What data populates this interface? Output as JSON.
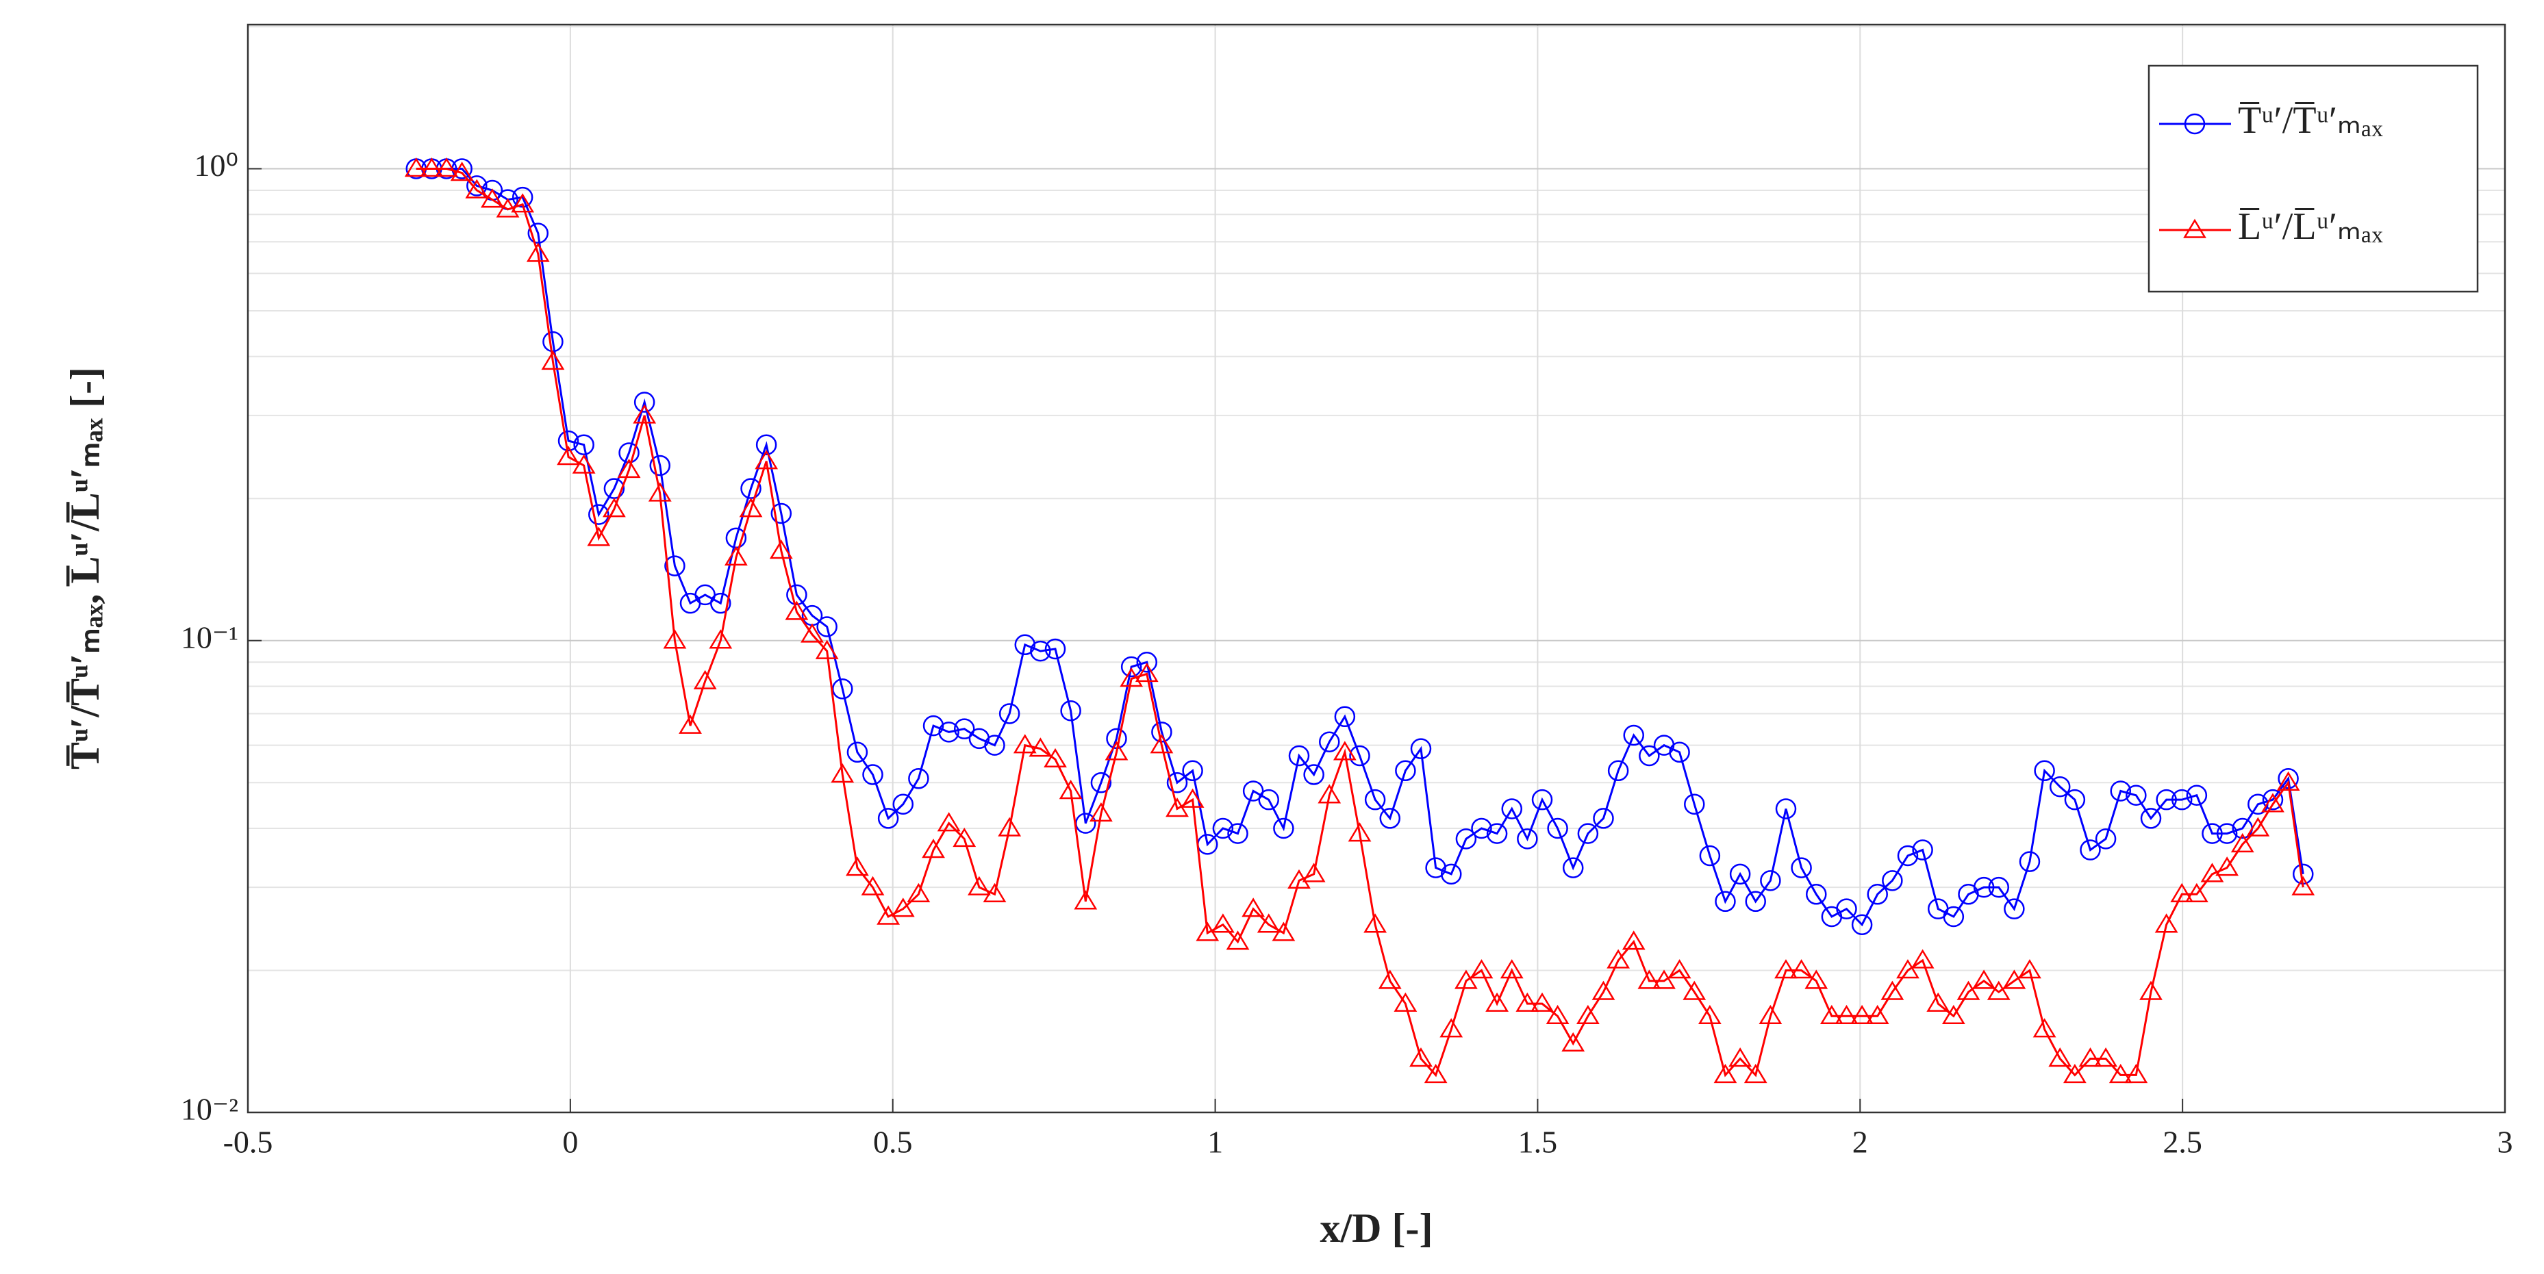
{
  "chart_data": {
    "type": "line",
    "xlabel": "x/D [-]",
    "ylabel": "T̅ᵘ′/T̅ᵘ′ₘₐₓ, L̅ᵘ′/L̅ᵘ′ₘₐₓ [-]",
    "x": [
      -0.239,
      -0.215,
      -0.192,
      -0.168,
      -0.145,
      -0.121,
      -0.097,
      -0.074,
      -0.05,
      -0.027,
      -0.003,
      0.021,
      0.044,
      0.068,
      0.091,
      0.115,
      0.139,
      0.162,
      0.186,
      0.209,
      0.233,
      0.257,
      0.28,
      0.304,
      0.327,
      0.351,
      0.375,
      0.398,
      0.422,
      0.445,
      0.469,
      0.493,
      0.516,
      0.54,
      0.563,
      0.587,
      0.611,
      0.634,
      0.658,
      0.681,
      0.705,
      0.729,
      0.752,
      0.776,
      0.799,
      0.823,
      0.847,
      0.87,
      0.894,
      0.917,
      0.941,
      0.965,
      0.988,
      1.012,
      1.035,
      1.059,
      1.083,
      1.106,
      1.13,
      1.153,
      1.177,
      1.201,
      1.224,
      1.248,
      1.271,
      1.295,
      1.319,
      1.342,
      1.366,
      1.389,
      1.413,
      1.437,
      1.46,
      1.484,
      1.507,
      1.531,
      1.555,
      1.578,
      1.602,
      1.625,
      1.649,
      1.673,
      1.696,
      1.72,
      1.743,
      1.767,
      1.791,
      1.814,
      1.838,
      1.861,
      1.885,
      1.909,
      1.932,
      1.956,
      1.979,
      2.003,
      2.027,
      2.05,
      2.074,
      2.097,
      2.121,
      2.145,
      2.168,
      2.192,
      2.215,
      2.239,
      2.263,
      2.286,
      2.31,
      2.333,
      2.357,
      2.381,
      2.404,
      2.428,
      2.451,
      2.475,
      2.499,
      2.522,
      2.546,
      2.569,
      2.593,
      2.617,
      2.64,
      2.664,
      2.687
    ],
    "series": [
      {
        "name": "T̅ᵘ′/T̅ᵘ′ₘₐₓ",
        "color": "#0000ff",
        "marker": "circle",
        "values": [
          1.0,
          1.0,
          1.0,
          1.0,
          0.92,
          0.9,
          0.86,
          0.87,
          0.73,
          0.43,
          0.265,
          0.26,
          0.185,
          0.21,
          0.25,
          0.32,
          0.235,
          0.144,
          0.12,
          0.125,
          0.12,
          0.165,
          0.21,
          0.26,
          0.186,
          0.125,
          0.113,
          0.107,
          0.079,
          0.058,
          0.052,
          0.042,
          0.045,
          0.051,
          0.066,
          0.064,
          0.065,
          0.062,
          0.06,
          0.07,
          0.098,
          0.095,
          0.096,
          0.071,
          0.041,
          0.05,
          0.062,
          0.088,
          0.09,
          0.064,
          0.05,
          0.053,
          0.037,
          0.04,
          0.039,
          0.048,
          0.046,
          0.04,
          0.057,
          0.052,
          0.061,
          0.069,
          0.057,
          0.046,
          0.042,
          0.053,
          0.059,
          0.033,
          0.032,
          0.038,
          0.04,
          0.039,
          0.044,
          0.038,
          0.046,
          0.04,
          0.033,
          0.039,
          0.042,
          0.053,
          0.063,
          0.057,
          0.06,
          0.058,
          0.045,
          0.035,
          0.028,
          0.032,
          0.028,
          0.031,
          0.044,
          0.033,
          0.029,
          0.026,
          0.027,
          0.025,
          0.029,
          0.031,
          0.035,
          0.036,
          0.027,
          0.026,
          0.029,
          0.03,
          0.03,
          0.027,
          0.034,
          0.053,
          0.049,
          0.046,
          0.036,
          0.038,
          0.048,
          0.047,
          0.042,
          0.046,
          0.046,
          0.047,
          0.039,
          0.039,
          0.04,
          0.045,
          0.046,
          0.051,
          0.032
        ]
      },
      {
        "name": "L̅ᵘ′/L̅ᵘ′ₘₐₓ",
        "color": "#ff0000",
        "marker": "triangle",
        "values": [
          1.0,
          1.0,
          1.0,
          0.98,
          0.9,
          0.86,
          0.82,
          0.84,
          0.66,
          0.39,
          0.245,
          0.235,
          0.165,
          0.19,
          0.23,
          0.3,
          0.205,
          0.1,
          0.066,
          0.082,
          0.1,
          0.15,
          0.19,
          0.24,
          0.155,
          0.115,
          0.103,
          0.095,
          0.052,
          0.033,
          0.03,
          0.026,
          0.027,
          0.029,
          0.036,
          0.041,
          0.038,
          0.03,
          0.029,
          0.04,
          0.06,
          0.059,
          0.056,
          0.048,
          0.028,
          0.043,
          0.058,
          0.083,
          0.085,
          0.06,
          0.044,
          0.046,
          0.024,
          0.025,
          0.023,
          0.027,
          0.025,
          0.024,
          0.031,
          0.032,
          0.047,
          0.058,
          0.039,
          0.025,
          0.019,
          0.017,
          0.013,
          0.012,
          0.015,
          0.019,
          0.02,
          0.017,
          0.02,
          0.017,
          0.017,
          0.016,
          0.014,
          0.016,
          0.018,
          0.021,
          0.023,
          0.019,
          0.019,
          0.02,
          0.018,
          0.016,
          0.012,
          0.013,
          0.012,
          0.016,
          0.02,
          0.02,
          0.019,
          0.016,
          0.016,
          0.016,
          0.016,
          0.018,
          0.02,
          0.021,
          0.017,
          0.016,
          0.018,
          0.019,
          0.018,
          0.019,
          0.02,
          0.015,
          0.013,
          0.012,
          0.013,
          0.013,
          0.012,
          0.012,
          0.018,
          0.025,
          0.029,
          0.029,
          0.032,
          0.033,
          0.037,
          0.04,
          0.045,
          0.05,
          0.03
        ]
      }
    ],
    "xlim": [
      -0.5,
      3
    ],
    "xticks": [
      -0.5,
      0,
      0.5,
      1,
      1.5,
      2,
      2.5,
      3
    ],
    "ylim": [
      0.01,
      2.02
    ],
    "ylog": true,
    "yticks": [
      {
        "value": 0.01,
        "label": "10⁻²"
      },
      {
        "value": 0.1,
        "label": "10⁻¹"
      },
      {
        "value": 1,
        "label": "10⁰"
      }
    ],
    "grid": true,
    "minor_grid": true,
    "legend": "upper right"
  }
}
